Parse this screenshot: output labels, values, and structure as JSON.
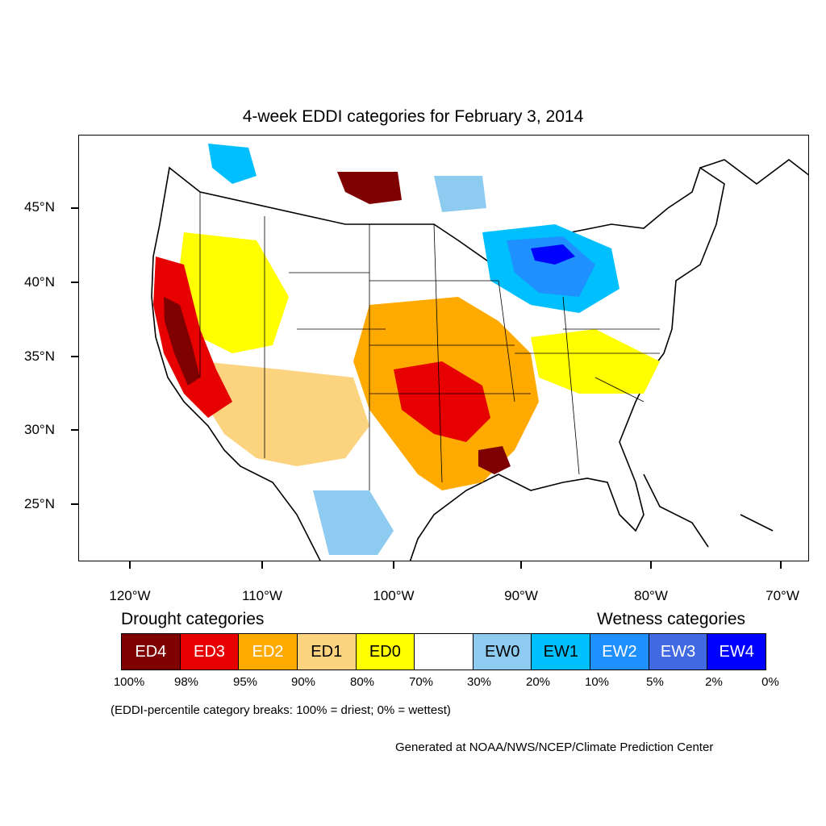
{
  "title": "4-week EDDI categories for February 3, 2014",
  "lat_labels": [
    "45°N",
    "40°N",
    "35°N",
    "30°N",
    "25°N"
  ],
  "lon_labels": [
    "120°W",
    "110°W",
    "100°W",
    "90°W",
    "80°W",
    "70°W"
  ],
  "legend": {
    "drought_heading": "Drought categories",
    "wetness_heading": "Wetness categories",
    "categories": [
      {
        "label": "ED4",
        "color": "#7f0000",
        "text_color": "#ffffff"
      },
      {
        "label": "ED3",
        "color": "#e60000",
        "text_color": "#ffffff"
      },
      {
        "label": "ED2",
        "color": "#ffaa00",
        "text_color": "#ffffff"
      },
      {
        "label": "ED1",
        "color": "#fcd37f",
        "text_color": "#000000"
      },
      {
        "label": "ED0",
        "color": "#ffff00",
        "text_color": "#000000"
      },
      {
        "label": "",
        "color": "#ffffff",
        "text_color": "#000000"
      },
      {
        "label": "EW0",
        "color": "#8ecbf0",
        "text_color": "#000000"
      },
      {
        "label": "EW1",
        "color": "#00bfff",
        "text_color": "#000000"
      },
      {
        "label": "EW2",
        "color": "#1e90ff",
        "text_color": "#ffffff"
      },
      {
        "label": "EW3",
        "color": "#4169e1",
        "text_color": "#ffffff"
      },
      {
        "label": "EW4",
        "color": "#0000ff",
        "text_color": "#ffffff"
      }
    ],
    "percentiles": [
      "100%",
      "98%",
      "95%",
      "90%",
      "80%",
      "70%",
      "30%",
      "20%",
      "10%",
      "5%",
      "2%",
      "0%"
    ]
  },
  "breaks_note": "(EDDI-percentile category breaks: 100% = driest; 0% = wettest)",
  "credit": "Generated at NOAA/NWS/NCEP/Climate Prediction Center"
}
